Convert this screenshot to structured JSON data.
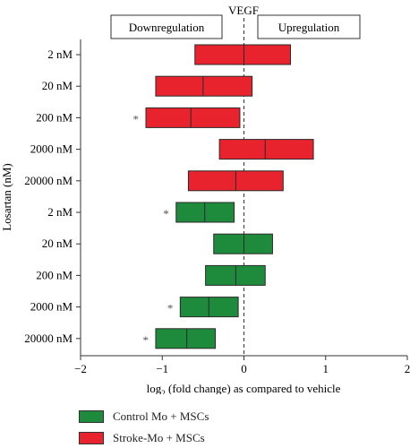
{
  "chart_data": {
    "type": "box",
    "title": "VEGF",
    "xlabel_prefix": "log",
    "xlabel_sub": "2",
    "xlabel_suffix": " (fold change) as compared to vehicle",
    "ylabel": "Losartan (nM)",
    "xlim": [
      -2,
      2
    ],
    "xticks": [
      -2,
      -1,
      0,
      1,
      2
    ],
    "header_left": "Downregulation",
    "header_right": "Upregulation",
    "significance_marker": "*",
    "colors": {
      "stroke": "#e8232e",
      "control": "#1e8a3c",
      "edge": "#2a2a2a"
    },
    "rows": [
      {
        "label": "2 nM",
        "group": "stroke",
        "low": -0.6,
        "median": 0.0,
        "high": 0.57,
        "sig": false
      },
      {
        "label": "20 nM",
        "group": "stroke",
        "low": -1.08,
        "median": -0.5,
        "high": 0.1,
        "sig": false
      },
      {
        "label": "200 nM",
        "group": "stroke",
        "low": -1.2,
        "median": -0.65,
        "high": -0.05,
        "sig": true
      },
      {
        "label": "2000 nM",
        "group": "stroke",
        "low": -0.3,
        "median": 0.26,
        "high": 0.85,
        "sig": false
      },
      {
        "label": "20000 nM",
        "group": "stroke",
        "low": -0.68,
        "median": -0.1,
        "high": 0.48,
        "sig": false
      },
      {
        "label": "2 nM",
        "group": "control",
        "low": -0.83,
        "median": -0.48,
        "high": -0.12,
        "sig": true
      },
      {
        "label": "20 nM",
        "group": "control",
        "low": -0.37,
        "median": 0.0,
        "high": 0.35,
        "sig": false
      },
      {
        "label": "200 nM",
        "group": "control",
        "low": -0.47,
        "median": -0.1,
        "high": 0.26,
        "sig": false
      },
      {
        "label": "2000 nM",
        "group": "control",
        "low": -0.78,
        "median": -0.43,
        "high": -0.07,
        "sig": true
      },
      {
        "label": "20000 nM",
        "group": "control",
        "low": -1.08,
        "median": -0.7,
        "high": -0.35,
        "sig": true
      }
    ],
    "legend": [
      {
        "label": "Control Mo + MSCs",
        "group": "control"
      },
      {
        "label": "Stroke-Mo + MSCs",
        "group": "stroke"
      }
    ]
  }
}
